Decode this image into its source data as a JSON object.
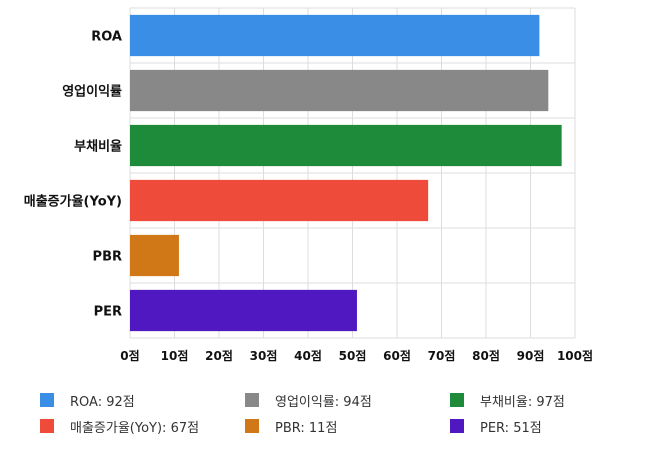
{
  "chart_data": {
    "type": "bar",
    "orientation": "horizontal",
    "categories": [
      "ROA",
      "영업이익률",
      "부채비율",
      "매출증가율(YoY)",
      "PBR",
      "PER"
    ],
    "values": [
      92,
      94,
      97,
      67,
      11,
      51
    ],
    "colors": [
      "#3a8ee6",
      "#888888",
      "#1e8b3a",
      "#ee4b3a",
      "#d07818",
      "#5018c0"
    ],
    "xlim": [
      0,
      100
    ],
    "x_ticks": [
      "0점",
      "10점",
      "20점",
      "30점",
      "40점",
      "50점",
      "60점",
      "70점",
      "80점",
      "90점",
      "100점"
    ],
    "grid": true,
    "legend_position": "bottom",
    "legend": [
      "ROA: 92점",
      "영업이익률: 94점",
      "부채비율: 97점",
      "매출증가율(YoY): 67점",
      "PBR: 11점",
      "PER: 51점"
    ]
  }
}
